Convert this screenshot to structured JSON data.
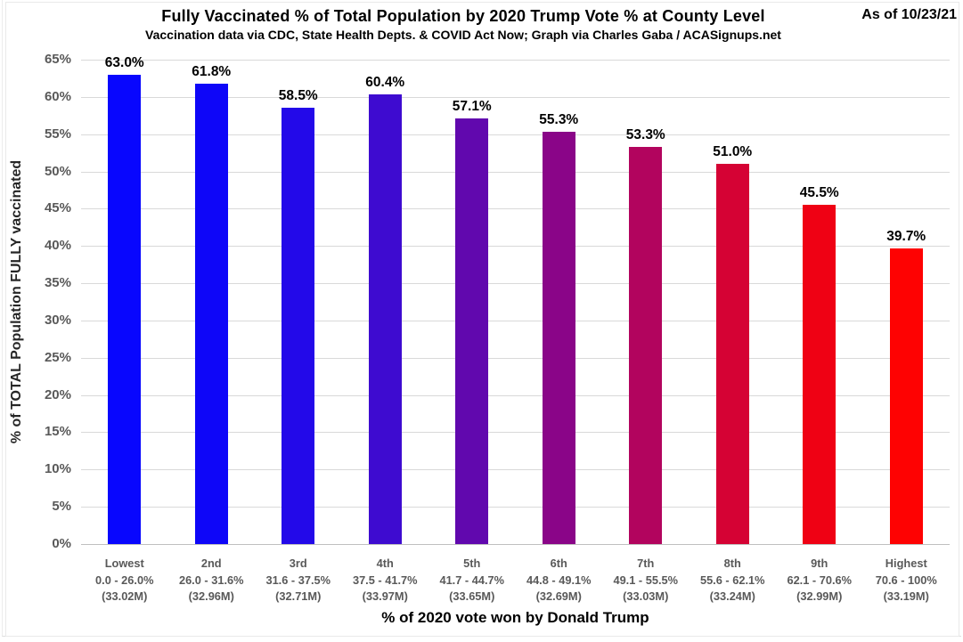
{
  "header": {
    "title": "Fully Vaccinated % of Total Population by 2020 Trump Vote % at County Level",
    "subtitle": "Vaccination data via CDC, State Health Depts. & COVID Act Now; Graph via Charles Gaba / ACASignups.net",
    "as_of": "As of 10/23/21"
  },
  "chart_data": {
    "type": "bar",
    "title": "Fully Vaccinated % of Total Population by 2020 Trump Vote % at County Level",
    "subtitle": "Vaccination data via CDC, State Health Depts. & COVID Act Now; Graph via Charles Gaba / ACASignups.net",
    "xlabel": "% of 2020 vote won by Donald Trump",
    "ylabel": "% of TOTAL Population FULLY vaccinated",
    "ylim": [
      0,
      65
    ],
    "ytick_step": 5,
    "ytick_labels": [
      "0%",
      "5%",
      "10%",
      "15%",
      "20%",
      "25%",
      "30%",
      "35%",
      "40%",
      "45%",
      "50%",
      "55%",
      "60%",
      "65%"
    ],
    "grid": true,
    "legend": false,
    "categories": [
      {
        "rank": "Lowest",
        "range": "0.0 - 26.0%",
        "population": "(33.02M)"
      },
      {
        "rank": "2nd",
        "range": "26.0 - 31.6%",
        "population": "(32.96M)"
      },
      {
        "rank": "3rd",
        "range": "31.6 - 37.5%",
        "population": "(32.71M)"
      },
      {
        "rank": "4th",
        "range": "37.5 - 41.7%",
        "population": "(33.97M)"
      },
      {
        "rank": "5th",
        "range": "41.7 - 44.7%",
        "population": "(33.65M)"
      },
      {
        "rank": "6th",
        "range": "44.8 - 49.1%",
        "population": "(32.69M)"
      },
      {
        "rank": "7th",
        "range": "49.1 - 55.5%",
        "population": "(33.03M)"
      },
      {
        "rank": "8th",
        "range": "55.6 - 62.1%",
        "population": "(33.24M)"
      },
      {
        "rank": "9th",
        "range": "62.1 - 70.6%",
        "population": "(32.99M)"
      },
      {
        "rank": "Highest",
        "range": "70.6 - 100%",
        "population": "(33.19M)"
      }
    ],
    "values": [
      63.0,
      61.8,
      58.5,
      60.4,
      57.1,
      55.3,
      53.3,
      51.0,
      45.5,
      39.7
    ],
    "value_labels": [
      "63.0%",
      "61.8%",
      "58.5%",
      "60.4%",
      "57.1%",
      "55.3%",
      "53.3%",
      "51.0%",
      "45.5%",
      "39.7%"
    ],
    "bar_colors": [
      "#0806fe",
      "#0e06f8",
      "#2309e9",
      "#3e0bd0",
      "#6108ae",
      "#8a0588",
      "#b2045e",
      "#d50234",
      "#ef0114",
      "#fe0202"
    ]
  },
  "colors": {
    "gridline": "#d9d9d9",
    "axis_line": "#bfbfbf",
    "tick_text": "#595959",
    "title_text": "#000000"
  }
}
